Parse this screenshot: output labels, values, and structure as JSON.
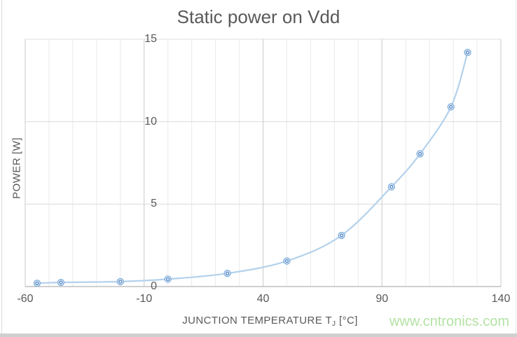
{
  "chart": {
    "title": "Static power on Vdd",
    "watermark": "www.cntronics.com",
    "watermark_color": "#b4e2a4"
  },
  "chart_data": {
    "type": "line",
    "title": "Static power on Vdd",
    "xlabel_prefix": "JUNCTION TEMPERATURE T",
    "xlabel_sub": "J",
    "xlabel_suffix": " [°C]",
    "ylabel": "POWER [W]",
    "xlim": [
      -60,
      140
    ],
    "ylim": [
      0,
      15
    ],
    "x_major_ticks": [
      -60,
      -10,
      40,
      90,
      140
    ],
    "x_minor_step": 10,
    "y_ticks": [
      0,
      5,
      10,
      15
    ],
    "grid": true,
    "legend": false,
    "series": [
      {
        "name": "Static power",
        "x": [
          -55,
          -45,
          -20,
          0,
          25,
          50,
          73,
          94,
          106,
          119,
          126
        ],
        "y": [
          0.2,
          0.25,
          0.3,
          0.45,
          0.8,
          1.55,
          3.1,
          6.05,
          8.05,
          10.9,
          14.2
        ]
      }
    ],
    "colors": {
      "line": "#b3d1ec",
      "marker_outer_ring": "#85b1dd",
      "marker_inner_ring": "#4d83c3",
      "grid_minor_v": "#eaeaea",
      "grid_major_v": "#c9c9c9",
      "grid_horizontal": "#dcdcdc",
      "axis_line": "#b3b3b3",
      "tick_text": "#595959"
    }
  }
}
